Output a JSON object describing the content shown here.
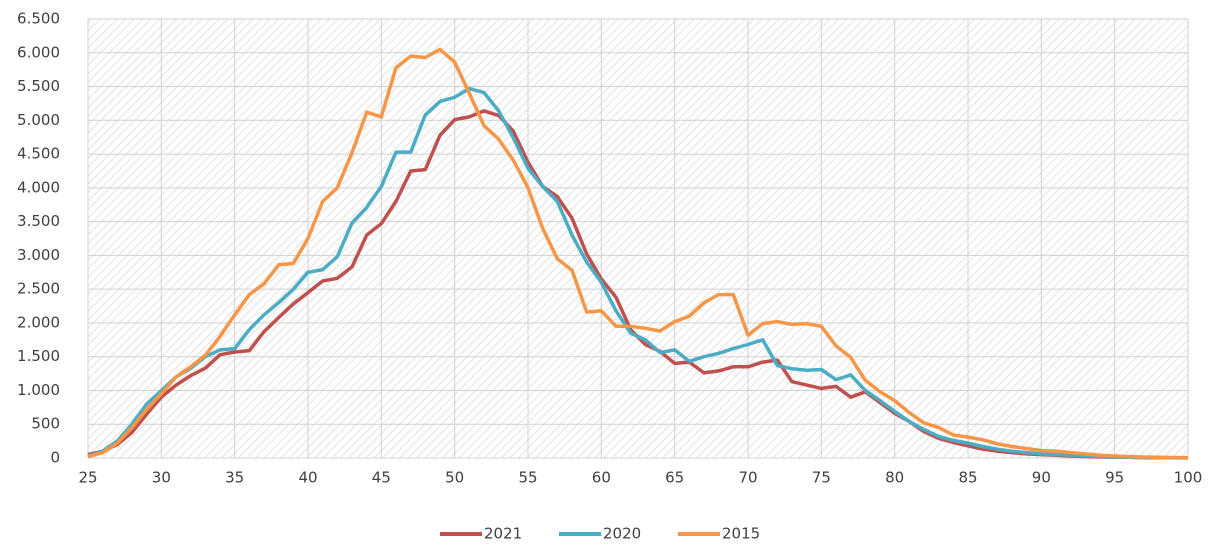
{
  "chart_data": {
    "type": "line",
    "x": [
      25,
      26,
      27,
      28,
      29,
      30,
      31,
      32,
      33,
      34,
      35,
      36,
      37,
      38,
      39,
      40,
      41,
      42,
      43,
      44,
      45,
      46,
      47,
      48,
      49,
      50,
      51,
      52,
      53,
      54,
      55,
      56,
      57,
      58,
      59,
      60,
      61,
      62,
      63,
      64,
      65,
      66,
      67,
      68,
      69,
      70,
      71,
      72,
      73,
      74,
      75,
      76,
      77,
      78,
      79,
      80,
      81,
      82,
      83,
      84,
      85,
      86,
      87,
      88,
      89,
      90,
      91,
      92,
      93,
      94,
      95,
      96,
      97,
      98,
      99,
      100
    ],
    "series": [
      {
        "name": "2021",
        "color": "#c0504d",
        "values": [
          50,
          100,
          200,
          380,
          650,
          900,
          1080,
          1220,
          1330,
          1530,
          1570,
          1590,
          1870,
          2080,
          2280,
          2450,
          2620,
          2660,
          2830,
          3300,
          3470,
          3800,
          4250,
          4270,
          4780,
          5010,
          5050,
          5140,
          5070,
          4840,
          4380,
          4020,
          3870,
          3550,
          3020,
          2650,
          2380,
          1900,
          1680,
          1580,
          1400,
          1420,
          1260,
          1290,
          1350,
          1350,
          1420,
          1450,
          1130,
          1080,
          1030,
          1060,
          900,
          980,
          820,
          660,
          540,
          390,
          290,
          230,
          180,
          130,
          100,
          80,
          60,
          50,
          40,
          30,
          20,
          15,
          10,
          10,
          5,
          5,
          3,
          2
        ]
      },
      {
        "name": "2020",
        "color": "#4bacc6",
        "values": [
          30,
          100,
          250,
          500,
          800,
          1000,
          1200,
          1330,
          1500,
          1600,
          1620,
          1900,
          2120,
          2300,
          2500,
          2750,
          2790,
          2980,
          3480,
          3710,
          4020,
          4530,
          4530,
          5080,
          5280,
          5340,
          5470,
          5410,
          5140,
          4740,
          4290,
          4020,
          3800,
          3300,
          2900,
          2600,
          2180,
          1850,
          1750,
          1560,
          1600,
          1430,
          1500,
          1550,
          1620,
          1680,
          1750,
          1370,
          1320,
          1300,
          1310,
          1160,
          1230,
          1000,
          850,
          690,
          540,
          420,
          320,
          260,
          220,
          170,
          130,
          100,
          80,
          60,
          50,
          40,
          30,
          20,
          15,
          10,
          8,
          5,
          3,
          2
        ]
      },
      {
        "name": "2015",
        "color": "#f79646",
        "values": [
          20,
          80,
          220,
          450,
          720,
          950,
          1200,
          1350,
          1520,
          1800,
          2120,
          2420,
          2580,
          2860,
          2880,
          3250,
          3800,
          4000,
          4520,
          5120,
          5050,
          5780,
          5950,
          5930,
          6050,
          5860,
          5400,
          4920,
          4720,
          4410,
          4000,
          3400,
          2950,
          2780,
          2160,
          2180,
          1950,
          1950,
          1920,
          1880,
          2020,
          2100,
          2300,
          2420,
          2420,
          1820,
          1990,
          2020,
          1980,
          1990,
          1950,
          1660,
          1490,
          1150,
          980,
          850,
          670,
          520,
          450,
          340,
          310,
          270,
          210,
          170,
          140,
          110,
          100,
          80,
          60,
          40,
          30,
          20,
          15,
          10,
          8,
          5
        ]
      }
    ],
    "xlim": [
      25,
      100
    ],
    "xticks": [
      25,
      30,
      35,
      40,
      45,
      50,
      55,
      60,
      65,
      70,
      75,
      80,
      85,
      90,
      95,
      100
    ],
    "ylim": [
      0,
      6500
    ],
    "yticks": [
      0,
      500,
      {
        "value": 1000,
        "label": "1.000"
      },
      {
        "value": 1500,
        "label": "1.500"
      },
      {
        "value": 2000,
        "label": "2.000"
      },
      {
        "value": 2500,
        "label": "2.500"
      },
      {
        "value": 3000,
        "label": "3.000"
      },
      {
        "value": 3500,
        "label": "3.500"
      },
      {
        "value": 4000,
        "label": "4.000"
      },
      {
        "value": 4500,
        "label": "4.500"
      },
      {
        "value": 5000,
        "label": "5.000"
      },
      {
        "value": 5500,
        "label": "5.500"
      },
      {
        "value": 6000,
        "label": "6.000"
      },
      {
        "value": 6500,
        "label": "6.500"
      }
    ],
    "grid": true,
    "legend": "bottom"
  }
}
